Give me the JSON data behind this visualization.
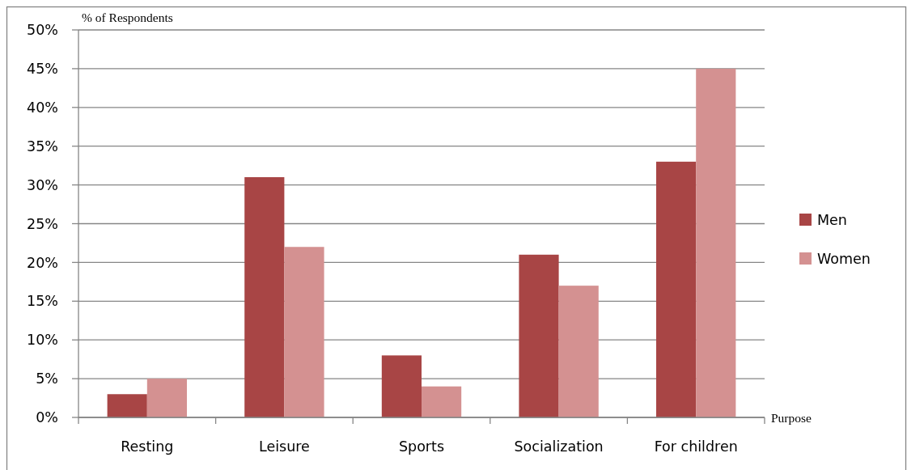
{
  "chart_data": {
    "type": "bar",
    "ylabel": "% of Respondents",
    "xlabel": "Purpose",
    "categories": [
      "Resting",
      "Leisure",
      "Sports",
      "Socialization",
      "For children"
    ],
    "series": [
      {
        "name": "Men",
        "color": "#a84545",
        "values": [
          3,
          31,
          8,
          21,
          33
        ]
      },
      {
        "name": "Women",
        "color": "#d49191",
        "values": [
          5,
          22,
          4,
          17,
          45
        ]
      }
    ],
    "ylim": [
      0,
      50
    ],
    "yticks": [
      {
        "value": 0,
        "label": "0%"
      },
      {
        "value": 5,
        "label": "5%"
      },
      {
        "value": 10,
        "label": "10%"
      },
      {
        "value": 15,
        "label": "15%"
      },
      {
        "value": 20,
        "label": "20%"
      },
      {
        "value": 25,
        "label": "25%"
      },
      {
        "value": 30,
        "label": "30%"
      },
      {
        "value": 35,
        "label": "35%"
      },
      {
        "value": 40,
        "label": "40%"
      },
      {
        "value": 45,
        "label": "45%"
      },
      {
        "value": 50,
        "label": "50%"
      }
    ],
    "grid": "y",
    "legend": "right"
  }
}
